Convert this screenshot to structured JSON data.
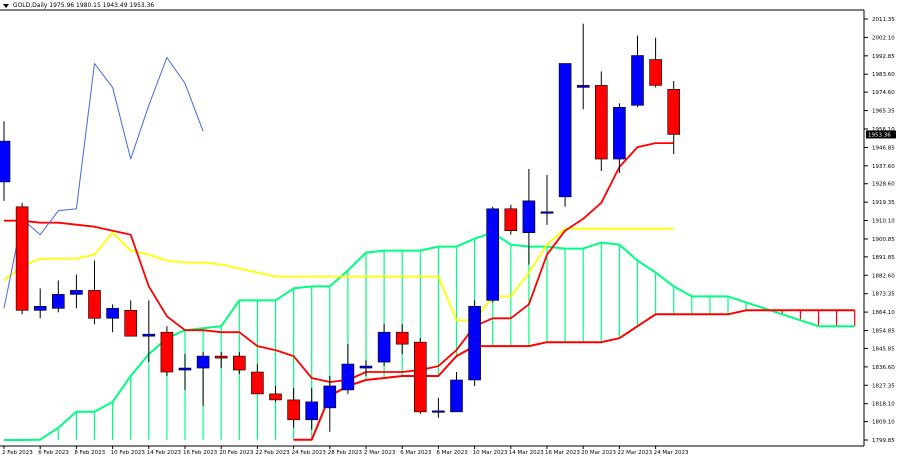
{
  "window": {
    "symbol": "GOLD,Daily",
    "ohlc": "1975.96 1980.15 1943.49 1953.36",
    "current_price_label": "1953.36"
  },
  "colors": {
    "background": "#ffffff",
    "bull_candle": "#0000ff",
    "bear_candle": "#ff0000",
    "tenkan": "#ff0000",
    "kijun": "#ffff00",
    "chikou": "#4169e1",
    "senkou_a": "#00ff7f",
    "senkou_b": "#ff0000",
    "axis_text": "#000000"
  },
  "chart_data": {
    "type": "candlestick",
    "title": "GOLD,Daily",
    "ylim": [
      1799.85,
      2016.0
    ],
    "yticks": [
      "2011.35",
      "2002.10",
      "1992.85",
      "1983.60",
      "1974.60",
      "1965.35",
      "1956.10",
      "1946.85",
      "1937.60",
      "1928.60",
      "1919.35",
      "1910.10",
      "1900.85",
      "1891.85",
      "1882.60",
      "1873.35",
      "1864.10",
      "1854.85",
      "1845.85",
      "1836.60",
      "1827.35",
      "1818.10",
      "1809.10",
      "1799.85"
    ],
    "xtick_labels": [
      {
        "index": 0,
        "label": "2 Feb 2023"
      },
      {
        "index": 2,
        "label": "6 Feb 2023"
      },
      {
        "index": 4,
        "label": "8 Feb 2023"
      },
      {
        "index": 6,
        "label": "10 Feb 2023"
      },
      {
        "index": 8,
        "label": "14 Feb 2023"
      },
      {
        "index": 10,
        "label": "16 Feb 2023"
      },
      {
        "index": 12,
        "label": "20 Feb 2023"
      },
      {
        "index": 14,
        "label": "22 Feb 2023"
      },
      {
        "index": 16,
        "label": "24 Feb 2023"
      },
      {
        "index": 18,
        "label": "28 Feb 2023"
      },
      {
        "index": 20,
        "label": "2 Mar 2023"
      },
      {
        "index": 22,
        "label": "6 Mar 2023"
      },
      {
        "index": 24,
        "label": "8 Mar 2023"
      },
      {
        "index": 26,
        "label": "10 Mar 2023"
      },
      {
        "index": 28,
        "label": "14 Mar 2023"
      },
      {
        "index": 30,
        "label": "16 Mar 2023"
      },
      {
        "index": 32,
        "label": "20 Mar 2023"
      },
      {
        "index": 34,
        "label": "22 Mar 2023"
      },
      {
        "index": 36,
        "label": "24 Mar 2023"
      }
    ],
    "candles": [
      {
        "o": 1929.5,
        "h": 1960.0,
        "l": 1920.0,
        "c": 1950.0
      },
      {
        "o": 1917.0,
        "h": 1919.0,
        "l": 1863.0,
        "c": 1865.0
      },
      {
        "o": 1865.0,
        "h": 1876.0,
        "l": 1861.0,
        "c": 1867.0
      },
      {
        "o": 1866.0,
        "h": 1880.0,
        "l": 1864.0,
        "c": 1873.0
      },
      {
        "o": 1873.0,
        "h": 1883.0,
        "l": 1866.0,
        "c": 1875.0
      },
      {
        "o": 1875.0,
        "h": 1890.0,
        "l": 1858.0,
        "c": 1861.0
      },
      {
        "o": 1861.0,
        "h": 1868.0,
        "l": 1854.0,
        "c": 1866.0
      },
      {
        "o": 1865.0,
        "h": 1870.0,
        "l": 1852.0,
        "c": 1852.0
      },
      {
        "o": 1852.0,
        "h": 1870.0,
        "l": 1839.0,
        "c": 1853.0
      },
      {
        "o": 1854.0,
        "h": 1857.0,
        "l": 1832.0,
        "c": 1834.0
      },
      {
        "o": 1835.0,
        "h": 1843.0,
        "l": 1825.0,
        "c": 1836.0
      },
      {
        "o": 1836.0,
        "h": 1844.0,
        "l": 1817.0,
        "c": 1842.0
      },
      {
        "o": 1842.0,
        "h": 1844.0,
        "l": 1836.0,
        "c": 1841.0
      },
      {
        "o": 1842.0,
        "h": 1844.0,
        "l": 1833.0,
        "c": 1835.0
      },
      {
        "o": 1834.0,
        "h": 1838.0,
        "l": 1823.0,
        "c": 1823.0
      },
      {
        "o": 1823.0,
        "h": 1827.0,
        "l": 1819.0,
        "c": 1820.0
      },
      {
        "o": 1820.0,
        "h": 1826.0,
        "l": 1806.0,
        "c": 1810.0
      },
      {
        "o": 1810.0,
        "h": 1826.0,
        "l": 1805.0,
        "c": 1819.0
      },
      {
        "o": 1816.0,
        "h": 1832.0,
        "l": 1804.0,
        "c": 1827.0
      },
      {
        "o": 1825.0,
        "h": 1848.0,
        "l": 1823.0,
        "c": 1838.0
      },
      {
        "o": 1836.0,
        "h": 1840.0,
        "l": 1832.0,
        "c": 1837.0
      },
      {
        "o": 1839.0,
        "h": 1858.0,
        "l": 1837.0,
        "c": 1854.0
      },
      {
        "o": 1854.0,
        "h": 1858.0,
        "l": 1843.0,
        "c": 1848.0
      },
      {
        "o": 1849.0,
        "h": 1851.0,
        "l": 1813.0,
        "c": 1814.0
      },
      {
        "o": 1814.0,
        "h": 1821.0,
        "l": 1811.0,
        "c": 1814.5
      },
      {
        "o": 1814.0,
        "h": 1834.0,
        "l": 1814.0,
        "c": 1830.0
      },
      {
        "o": 1830.0,
        "h": 1870.0,
        "l": 1827.0,
        "c": 1867.0
      },
      {
        "o": 1870.0,
        "h": 1917.0,
        "l": 1869.0,
        "c": 1916.0
      },
      {
        "o": 1916.0,
        "h": 1918.0,
        "l": 1903.0,
        "c": 1905.0
      },
      {
        "o": 1904.0,
        "h": 1936.0,
        "l": 1888.0,
        "c": 1920.0
      },
      {
        "o": 1914.0,
        "h": 1933.0,
        "l": 1908.0,
        "c": 1914.5
      },
      {
        "o": 1922.0,
        "h": 1989.0,
        "l": 1917.0,
        "c": 1989.0
      },
      {
        "o": 1977.0,
        "h": 2009.0,
        "l": 1966.0,
        "c": 1978.0
      },
      {
        "o": 1978.0,
        "h": 1985.0,
        "l": 1935.0,
        "c": 1941.0
      },
      {
        "o": 1941.0,
        "h": 1969.0,
        "l": 1934.0,
        "c": 1967.0
      },
      {
        "o": 1968.0,
        "h": 2003.0,
        "l": 1967.0,
        "c": 1993.0
      },
      {
        "o": 1991.0,
        "h": 2002.0,
        "l": 1977.0,
        "c": 1978.0
      },
      {
        "o": 1976.0,
        "h": 1980.15,
        "l": 1943.49,
        "c": 1953.36
      }
    ],
    "series": [
      {
        "key": "tenkan",
        "start": 0,
        "values": [
          1910,
          1910,
          1909,
          1909,
          1908,
          1907,
          1905,
          1903,
          1877,
          1862,
          1855,
          1855,
          1854,
          1854,
          1847,
          1845,
          1842,
          1831,
          1829,
          1830,
          1834,
          1834,
          1834,
          1835,
          1837,
          1845,
          1857,
          1861,
          1861,
          1868,
          1893,
          1905,
          1911,
          1919,
          1937,
          1947,
          1949,
          1949
        ]
      },
      {
        "key": "kijun",
        "start": 0,
        "values": [
          1880,
          1887,
          1891,
          1891,
          1891,
          1893,
          1904,
          1895,
          1893,
          1890,
          1889,
          1889,
          1888,
          1886,
          1884,
          1882,
          1882,
          1882,
          1882,
          1882,
          1882,
          1882,
          1882,
          1882,
          1882,
          1860,
          1860,
          1872,
          1872,
          1884,
          1898,
          1906,
          1906,
          1906,
          1906,
          1906,
          1906,
          1906
        ]
      },
      {
        "key": "chikou",
        "start": 0,
        "values": [
          1866,
          1911,
          1903,
          1915,
          1916,
          1989,
          1977,
          1941,
          1968,
          1992,
          1979,
          1955
        ]
      },
      {
        "key": "senkou_a",
        "start": 0,
        "values": [
          1790,
          1795,
          1800,
          1806,
          1814,
          1814,
          1819,
          1832,
          1843,
          1851,
          1855,
          1856,
          1857,
          1870,
          1870,
          1870,
          1876,
          1877,
          1877,
          1885,
          1894,
          1895,
          1895,
          1895,
          1897,
          1897,
          1901,
          1904,
          1898,
          1897,
          1897,
          1896,
          1896,
          1899,
          1898,
          1890,
          1884,
          1877,
          1872,
          1872,
          1872,
          1869,
          1866,
          1863,
          1860,
          1857,
          1857,
          1857,
          1860,
          1860
        ]
      },
      {
        "key": "senkou_b",
        "start": 16,
        "values": [
          1800,
          1800,
          1822,
          1827,
          1830,
          1831,
          1832,
          1832,
          1832,
          1842,
          1847,
          1847,
          1847,
          1847,
          1849,
          1849,
          1849,
          1849,
          1851,
          1857,
          1863,
          1863,
          1863,
          1863,
          1863,
          1865,
          1865,
          1865,
          1865,
          1865,
          1865,
          1865,
          1868,
          1873,
          1872,
          1871
        ]
      }
    ]
  }
}
